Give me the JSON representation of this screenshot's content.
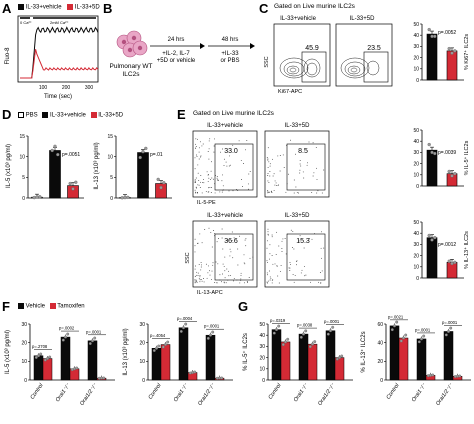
{
  "panels": {
    "A": {
      "letter": "A",
      "legend": [
        "IL-33+vehicle",
        "IL-33+5D"
      ],
      "ylabel": "Fluo-8",
      "xlabel": "Time (sec)",
      "calcium_labels": [
        "0 Ca²⁺",
        "2mM Ca²⁺"
      ],
      "xticks": [
        "100",
        "200",
        "300"
      ]
    },
    "B": {
      "letter": "B",
      "cells_label_1": "Pulmonary WT",
      "cells_label_2": "ILC2s",
      "step1_top": "24 hrs",
      "step1_l1": "+IL-2, IL-7",
      "step1_l2": "+5D or vehicle",
      "step2_top": "48 hrs",
      "step2_l1": "+IL-33",
      "step2_l2": "or PBS"
    },
    "C": {
      "letter": "C",
      "title": "Gated on Live murine ILC2s",
      "plot1_title": "IL-33+vehicle",
      "plot2_title": "IL-33+5D",
      "plot1_value": "45.9",
      "plot2_value": "23.5",
      "yaxis": "SSC",
      "xaxis": "Ki67-APC",
      "bar_ylabel": "% Ki67⁺ ILC2s",
      "pvalue": "p=.0052"
    },
    "D": {
      "letter": "D",
      "legend": [
        "PBS",
        "IL-33+vehicle",
        "IL-33+5D"
      ],
      "chart1_ylabel": "IL-5 (x10³ pg/ml)",
      "chart2_ylabel": "IL-13 (x10³ pg/ml)",
      "chart1_p": "p=.0051",
      "chart2_p": "p=.01"
    },
    "E": {
      "letter": "E",
      "title": "Gated on Live murine ILC2s",
      "top_plot1_title": "IL-33+vehicle",
      "top_plot2_title": "IL-33+5D",
      "top_plot1_value": "33.0",
      "top_plot2_value": "8.5",
      "top_xaxis": "IL-5-PE",
      "bottom_plot1_title": "IL-33+vehicle",
      "bottom_plot2_title": "IL-33+5D",
      "bottom_plot1_value": "36.6",
      "bottom_plot2_value": "15.3",
      "bottom_xaxis": "IL-13-APC",
      "yaxis": "SSC",
      "bar1_ylabel": "% IL-5⁺ ILC2s",
      "bar2_ylabel": "% IL-13⁺ ILC2s",
      "bar1_p": "p=.0039",
      "bar2_p": "p=.0012"
    },
    "F": {
      "letter": "F",
      "legend": [
        "Vehicle",
        "Tamoxifen"
      ],
      "chart1_ylabel": "IL-5 (x10³ pg/ml)",
      "chart2_ylabel": "IL-13 (x10³ pg/ml)",
      "categories": [
        "Control",
        "Orai1⁻/⁻",
        "Orai1/2⁻/⁻"
      ],
      "chart1_p": [
        "p=.2708",
        "p=.0002",
        "p=.0001"
      ],
      "chart2_p": [
        "p=.4054",
        "p=.0004",
        "p=.0001"
      ]
    },
    "G": {
      "letter": "G",
      "chart1_ylabel": "% IL-5⁺ ILC2s",
      "chart2_ylabel": "% IL-13⁺ ILC2s",
      "categories": [
        "Control",
        "Orai1⁻/⁻",
        "Orai1/2⁻/⁻"
      ],
      "chart1_p": [
        "p=.0319",
        "p=.0038",
        "p=.0001"
      ],
      "chart2_p": [
        "p=.0021",
        "p=.0001",
        "p=.0001"
      ]
    }
  },
  "colors": {
    "black": "#0a0a0a",
    "red": "#d42a35",
    "white": "#ffffff",
    "gray_dot": "#9a9a9a"
  },
  "chart_data": [
    {
      "id": "A-trace",
      "type": "line",
      "series": [
        {
          "name": "IL-33+vehicle",
          "values_note": "rises to plateau ~1.0 after Ca addition"
        },
        {
          "name": "IL-33+5D",
          "values_note": "transient peak then ~0.3"
        }
      ],
      "xlim": [
        0,
        300
      ]
    },
    {
      "id": "C-bar",
      "type": "bar",
      "categories": [
        "IL-33+vehicle",
        "IL-33+5D"
      ],
      "values": [
        41,
        26
      ],
      "points": [
        [
          45,
          39,
          39
        ],
        [
          28,
          24,
          26
        ]
      ],
      "ylim": [
        0,
        50
      ],
      "yticks": [
        0,
        10,
        20,
        30,
        40,
        50
      ]
    },
    {
      "id": "D-IL5",
      "type": "bar",
      "categories": [
        "PBS",
        "IL-33+vehicle",
        "IL-33+5D"
      ],
      "values": [
        0.2,
        11.5,
        3.0
      ],
      "points": [
        [
          0.1,
          0.2,
          0.3
        ],
        [
          11.5,
          12.5,
          10.5
        ],
        [
          3.5,
          2.2,
          3.8
        ]
      ],
      "ylim": [
        0,
        15
      ],
      "yticks": [
        0,
        5,
        10,
        15
      ]
    },
    {
      "id": "D-IL13",
      "type": "bar",
      "categories": [
        "PBS",
        "IL-33+vehicle",
        "IL-33+5D"
      ],
      "values": [
        0.1,
        11.0,
        3.5
      ],
      "points": [
        [
          0.05,
          0.1,
          0.15
        ],
        [
          9.8,
          11.2,
          12.0
        ],
        [
          4.5,
          2.5,
          3.7
        ]
      ],
      "ylim": [
        0,
        15
      ],
      "yticks": [
        0,
        5,
        10,
        15
      ]
    },
    {
      "id": "E-IL5",
      "type": "bar",
      "categories": [
        "IL-33+vehicle",
        "IL-33+5D"
      ],
      "values": [
        32,
        11
      ],
      "points": [
        [
          37,
          30,
          29
        ],
        [
          13,
          9,
          11
        ]
      ],
      "ylim": [
        0,
        50
      ],
      "yticks": [
        0,
        10,
        20,
        30,
        40,
        50
      ]
    },
    {
      "id": "E-IL13",
      "type": "bar",
      "categories": [
        "IL-33+vehicle",
        "IL-33+5D"
      ],
      "values": [
        36,
        14
      ],
      "points": [
        [
          38,
          34,
          36
        ],
        [
          15,
          13,
          14
        ]
      ],
      "ylim": [
        0,
        50
      ],
      "yticks": [
        0,
        10,
        20,
        30,
        40,
        50
      ]
    },
    {
      "id": "F-IL5",
      "type": "bar",
      "categories": [
        "Control",
        "Orai1⁻/⁻",
        "Orai1/2⁻/⁻"
      ],
      "series": [
        {
          "name": "Vehicle",
          "values": [
            13,
            23,
            21
          ]
        },
        {
          "name": "Tamoxifen",
          "values": [
            11.5,
            6,
            1
          ]
        }
      ],
      "ylim": [
        0,
        30
      ],
      "yticks": [
        0,
        10,
        20,
        30
      ]
    },
    {
      "id": "F-IL13",
      "type": "bar",
      "categories": [
        "Control",
        "Orai1⁻/⁻",
        "Orai1/2⁻/⁻"
      ],
      "series": [
        {
          "name": "Vehicle",
          "values": [
            17,
            28,
            24
          ]
        },
        {
          "name": "Tamoxifen",
          "values": [
            19,
            4,
            1
          ]
        }
      ],
      "ylim": [
        0,
        30
      ],
      "yticks": [
        0,
        10,
        20,
        30
      ]
    },
    {
      "id": "G-IL5",
      "type": "bar",
      "categories": [
        "Control",
        "Orai1⁻/⁻",
        "Orai1/2⁻/⁻"
      ],
      "series": [
        {
          "name": "Vehicle",
          "values": [
            45,
            41,
            44
          ]
        },
        {
          "name": "Tamoxifen",
          "values": [
            34,
            32,
            20
          ]
        }
      ],
      "ylim": [
        0,
        50
      ],
      "yticks": [
        0,
        10,
        20,
        30,
        40,
        50
      ]
    },
    {
      "id": "G-IL13",
      "type": "bar",
      "categories": [
        "Control",
        "Orai1⁻/⁻",
        "Orai1/2⁻/⁻"
      ],
      "series": [
        {
          "name": "Vehicle",
          "values": [
            58,
            44,
            52
          ]
        },
        {
          "name": "Tamoxifen",
          "values": [
            45,
            5,
            4
          ]
        }
      ],
      "ylim": [
        0,
        60
      ],
      "yticks": [
        0,
        20,
        40,
        60
      ]
    }
  ]
}
